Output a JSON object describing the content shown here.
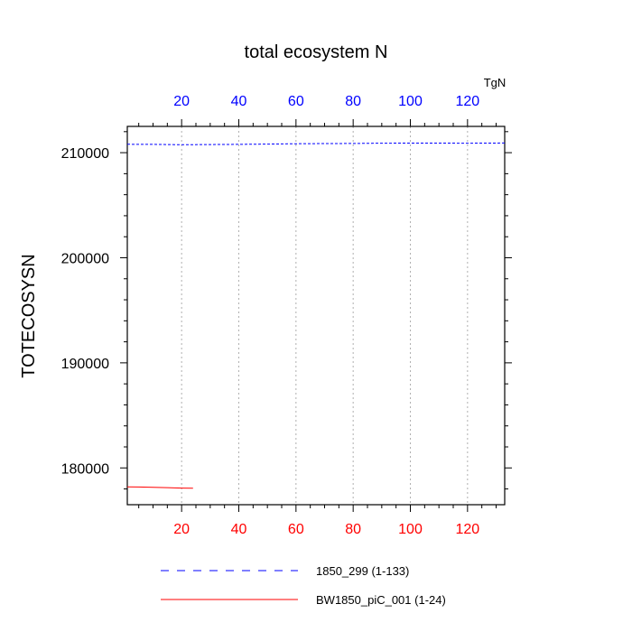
{
  "chart_data": {
    "type": "line",
    "title": "total ecosystem N",
    "units": "TgN",
    "xlabel": "",
    "ylabel": "TOTECOSYSN",
    "xlim": [
      1,
      133
    ],
    "ylim": [
      176500,
      212500
    ],
    "x_ticks": [
      20,
      40,
      60,
      80,
      100,
      120
    ],
    "x_tick_labels": [
      "20",
      "40",
      "60",
      "80",
      "100",
      "120"
    ],
    "y_ticks": [
      180000,
      190000,
      200000,
      210000
    ],
    "y_tick_labels": [
      "180000",
      "190000",
      "200000",
      "210000"
    ],
    "top_axis_color": "#0000ff",
    "bottom_axis_color": "#ff0000",
    "grid_x": true,
    "legend_position": "bottom",
    "series": [
      {
        "name": "1850_299 (1-133)",
        "color": "#0000ff",
        "dash": "dashed",
        "x": [
          1,
          10,
          20,
          30,
          40,
          50,
          60,
          70,
          80,
          90,
          100,
          110,
          120,
          133
        ],
        "values": [
          210800,
          210790,
          210760,
          210770,
          210790,
          210820,
          210850,
          210870,
          210880,
          210900,
          210910,
          210910,
          210900,
          210920
        ]
      },
      {
        "name": "BW1850_piC_001 (1-24)",
        "color": "#ff0000",
        "dash": "solid",
        "x": [
          1,
          5,
          10,
          15,
          20,
          24
        ],
        "values": [
          178200,
          178180,
          178150,
          178120,
          178080,
          178060
        ]
      }
    ]
  }
}
